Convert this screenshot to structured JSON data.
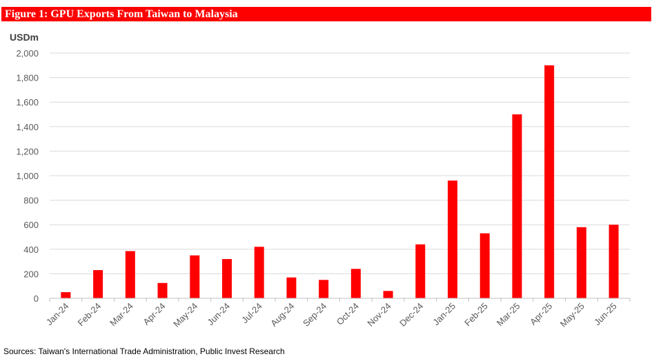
{
  "figure": {
    "title": "Figure 1: GPU Exports From Taiwan to Malaysia",
    "source": "Sources: Taiwan's International Trade Administration, Public Invest Research",
    "accent_color": "#ff0000"
  },
  "chart_data": {
    "type": "bar",
    "title": "Figure 1: GPU Exports From Taiwan to Malaysia",
    "ylabel": "USDm",
    "xlabel": "",
    "ylim": [
      0,
      2000
    ],
    "yticks": [
      0,
      200,
      400,
      600,
      800,
      1000,
      1200,
      1400,
      1600,
      1800,
      2000
    ],
    "ytick_labels": [
      "0",
      "200",
      "400",
      "600",
      "800",
      "1,000",
      "1,200",
      "1,400",
      "1,600",
      "1,800",
      "2,000"
    ],
    "categories": [
      "Jan-24",
      "Feb-24",
      "Mar-24",
      "Apr-24",
      "May-24",
      "Jun-24",
      "Jul-24",
      "Aug-24",
      "Sep-24",
      "Oct-24",
      "Nov-24",
      "Dec-24",
      "Jan-25",
      "Feb-25",
      "Mar-25",
      "Apr-25",
      "May-25",
      "Jun-25"
    ],
    "values": [
      50,
      230,
      385,
      125,
      350,
      320,
      420,
      170,
      150,
      240,
      60,
      440,
      960,
      530,
      1500,
      1900,
      580,
      600
    ],
    "bar_color": "#ff0000",
    "grid": true,
    "legend": "none"
  }
}
